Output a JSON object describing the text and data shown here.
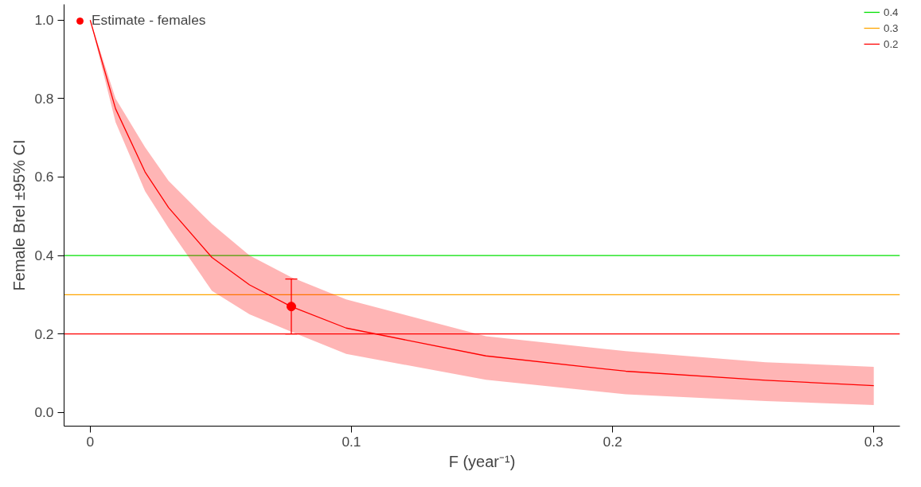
{
  "chart_data": {
    "type": "line",
    "xlabel": "F (year⁻¹)",
    "ylabel": "Female Brel ±95% CI",
    "xlim": [
      -0.01,
      0.31
    ],
    "ylim": [
      -0.035,
      1.04
    ],
    "xticks": [
      0,
      0.1,
      0.2,
      0.3
    ],
    "yticks": [
      {
        "value": 0,
        "label": "0.0"
      },
      0.2,
      0.4,
      0.6,
      0.8,
      {
        "value": 1,
        "label": "1.0"
      }
    ],
    "grid": false,
    "legend": "top left",
    "series": [
      {
        "color": "#ff0000",
        "x": [
          0,
          0.0097,
          0.021,
          0.03,
          0.0466,
          0.061,
          0.0769,
          0.098,
          0.1515,
          0.205,
          0.2586,
          0.3
        ],
        "values": [
          1.0,
          0.774,
          0.613,
          0.522,
          0.395,
          0.325,
          0.27,
          0.215,
          0.144,
          0.105,
          0.082,
          0.068
        ],
        "lower": [
          1.0,
          0.74,
          0.564,
          0.47,
          0.31,
          0.25,
          0.206,
          0.149,
          0.083,
          0.046,
          0.029,
          0.019
        ],
        "upper": [
          1.0,
          0.8,
          0.676,
          0.59,
          0.48,
          0.4,
          0.345,
          0.288,
          0.194,
          0.156,
          0.128,
          0.116
        ]
      },
      {
        "type": "scatter",
        "name": "Estimate - females",
        "color": "#ff0000",
        "marker": "circle",
        "x": [
          0.077
        ],
        "values": [
          0.27
        ],
        "errors": [
          [
            0.2,
            0.34
          ]
        ]
      }
    ],
    "ref_lines": [
      {
        "axis": "y",
        "value": 0.4,
        "label": "0.4",
        "color": "#00e000"
      },
      {
        "axis": "y",
        "value": 0.3,
        "label": "0.3",
        "color": "#ffa500"
      },
      {
        "axis": "y",
        "value": 0.2,
        "label": "0.2",
        "color": "#ff0000"
      }
    ]
  }
}
